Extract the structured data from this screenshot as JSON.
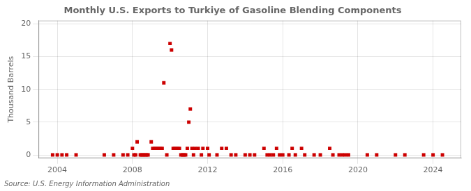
{
  "chart_data": {
    "type": "scatter",
    "title": "Monthly U.S. Exports to Turkiye of Gasoline Blending Components",
    "ylabel": "Thousand Barrels",
    "annotation": "Source: U.S. Energy Information Administration",
    "color": "#cc0000",
    "marker": "square",
    "xlim": [
      2003.0,
      2025.5
    ],
    "xticks": [
      2004,
      2008,
      2012,
      2016,
      2020,
      2024
    ],
    "ylim": [
      -0.5,
      20.5
    ],
    "yticks": [
      0,
      5,
      10,
      15,
      20
    ],
    "grid": true,
    "x": [
      2003.75,
      2004.0,
      2004.25,
      2004.5,
      2005.0,
      2006.5,
      2007.0,
      2007.5,
      2007.75,
      2008.0,
      2008.08,
      2008.17,
      2008.25,
      2008.42,
      2008.5,
      2008.58,
      2008.67,
      2008.75,
      2008.83,
      2009.0,
      2009.08,
      2009.17,
      2009.25,
      2009.33,
      2009.42,
      2009.5,
      2009.58,
      2009.67,
      2009.83,
      2010.0,
      2010.08,
      2010.17,
      2010.25,
      2010.33,
      2010.42,
      2010.5,
      2010.58,
      2010.67,
      2010.75,
      2010.83,
      2010.92,
      2011.0,
      2011.08,
      2011.17,
      2011.25,
      2011.33,
      2011.5,
      2011.67,
      2011.75,
      2012.0,
      2012.08,
      2012.5,
      2012.75,
      2013.0,
      2013.25,
      2013.5,
      2014.0,
      2014.25,
      2014.5,
      2015.0,
      2015.17,
      2015.33,
      2015.5,
      2015.67,
      2015.83,
      2016.0,
      2016.33,
      2016.5,
      2016.67,
      2017.0,
      2017.17,
      2017.67,
      2018.0,
      2018.5,
      2018.67,
      2019.0,
      2019.17,
      2019.33,
      2019.5,
      2020.5,
      2021.0,
      2022.0,
      2022.5,
      2023.5,
      2024.0,
      2024.5
    ],
    "values": [
      0.0,
      0.0,
      0.0,
      0.0,
      0.0,
      0.0,
      0.0,
      0.0,
      0.0,
      1.0,
      0.0,
      0.0,
      2.0,
      0.0,
      0.0,
      0.0,
      0.0,
      0.0,
      0.0,
      2.0,
      1.0,
      1.0,
      1.0,
      1.0,
      1.0,
      1.0,
      1.0,
      11.0,
      0.0,
      17.0,
      16.0,
      1.0,
      1.0,
      1.0,
      1.0,
      1.0,
      0.0,
      0.0,
      0.0,
      0.0,
      1.0,
      5.0,
      7.0,
      1.0,
      0.0,
      1.0,
      1.0,
      0.0,
      1.0,
      1.0,
      0.0,
      0.0,
      1.0,
      1.0,
      0.0,
      0.0,
      0.0,
      0.0,
      0.0,
      1.0,
      0.0,
      0.0,
      0.0,
      1.0,
      0.0,
      0.0,
      0.0,
      1.0,
      0.0,
      1.0,
      0.0,
      0.0,
      0.0,
      1.0,
      0.0,
      0.0,
      0.0,
      0.0,
      0.0,
      0.0,
      0.0,
      0.0,
      0.0,
      0.0,
      0.0,
      0.0
    ]
  }
}
